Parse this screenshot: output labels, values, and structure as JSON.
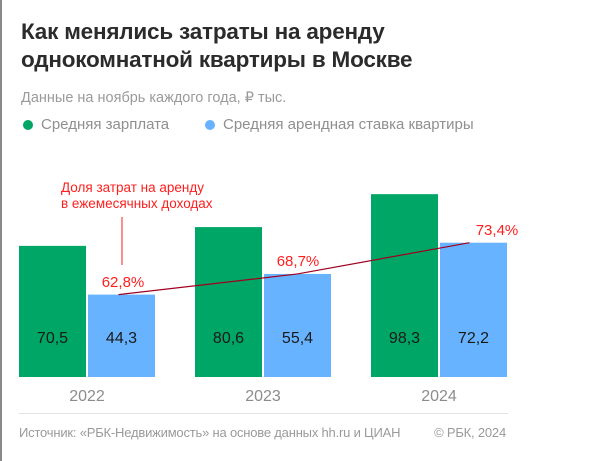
{
  "title_line1": "Как менялись затраты на аренду",
  "title_line2": "однокомнатной квартиры в Москве",
  "subtitle": "Данные на ноябрь каждого года, ₽ тыс.",
  "footer": {
    "source": "Источник: «РБК-Недвижимость» на основе данных hh.ru и ЦИАН",
    "copyright": "© РБК, 2024"
  },
  "chart_data": {
    "type": "bar",
    "categories": [
      "2022",
      "2023",
      "2024"
    ],
    "series": [
      {
        "name": "Средняя зарплата",
        "values": [
          70.5,
          80.6,
          98.3
        ],
        "labels": [
          "70,5",
          "80,6",
          "98,3"
        ],
        "color": "#00a665"
      },
      {
        "name": "Средняя арендная ставка квартиры",
        "values": [
          44.3,
          55.4,
          72.2
        ],
        "labels": [
          "44,3",
          "55,4",
          "72,2"
        ],
        "color": "#68b3ff"
      }
    ],
    "line": {
      "values": [
        62.8,
        68.7,
        73.4
      ],
      "labels": [
        "62,8%",
        "68,7%",
        "73,4%"
      ],
      "color": "#a0001e",
      "label_color": "#ff1e1e"
    },
    "annotation": {
      "line1": "Доля затрат на аренду",
      "line2": "в ежемесячных доходах"
    },
    "ylim": [
      0,
      105
    ],
    "grid": false,
    "legend_position": "top-left"
  }
}
